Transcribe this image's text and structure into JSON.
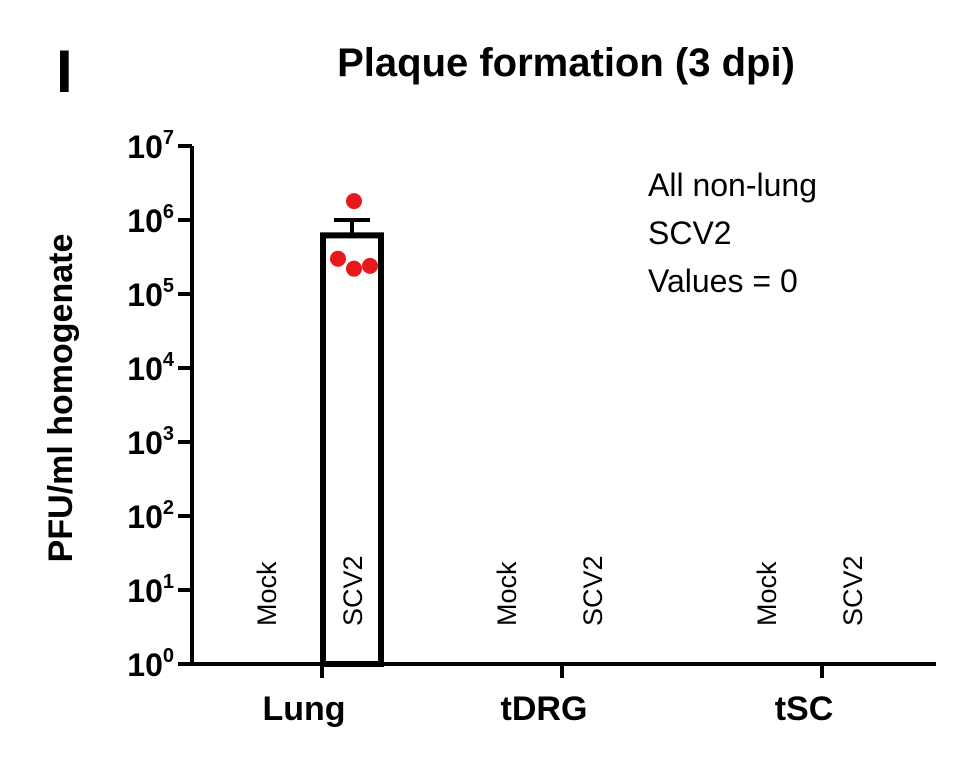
{
  "panel_label": "I",
  "chart_data": {
    "type": "bar",
    "title": "Plaque formation (3 dpi)",
    "ylabel": "PFU/ml homogenate",
    "xlabel": "",
    "yscale": "log",
    "ylim": [
      1,
      10000000
    ],
    "y_ticks": [
      {
        "value": 1,
        "base": "10",
        "exp": "0"
      },
      {
        "value": 10,
        "base": "10",
        "exp": "1"
      },
      {
        "value": 100,
        "base": "10",
        "exp": "2"
      },
      {
        "value": 1000,
        "base": "10",
        "exp": "3"
      },
      {
        "value": 10000,
        "base": "10",
        "exp": "4"
      },
      {
        "value": 100000,
        "base": "10",
        "exp": "5"
      },
      {
        "value": 1000000,
        "base": "10",
        "exp": "6"
      },
      {
        "value": 10000000,
        "base": "10",
        "exp": "7"
      }
    ],
    "groups": [
      {
        "label": "Lung",
        "conditions": [
          {
            "label": "Mock",
            "value": 0,
            "points": []
          },
          {
            "label": "SCV2",
            "value": 620000,
            "error_upper": 1000000,
            "points": [
              1800000,
              300000,
              220000,
              240000
            ]
          }
        ]
      },
      {
        "label": "tDRG",
        "conditions": [
          {
            "label": "Mock",
            "value": 0,
            "points": []
          },
          {
            "label": "SCV2",
            "value": 0,
            "points": []
          }
        ]
      },
      {
        "label": "tSC",
        "conditions": [
          {
            "label": "Mock",
            "value": 0,
            "points": []
          },
          {
            "label": "SCV2",
            "value": 0,
            "points": []
          }
        ]
      }
    ],
    "annotation": [
      "All non-lung",
      "SCV2",
      "Values = 0"
    ],
    "point_color": "#e8191c",
    "bar_fill": "#ffffff",
    "bar_stroke": "#000000",
    "grid": false,
    "legend": "none"
  }
}
